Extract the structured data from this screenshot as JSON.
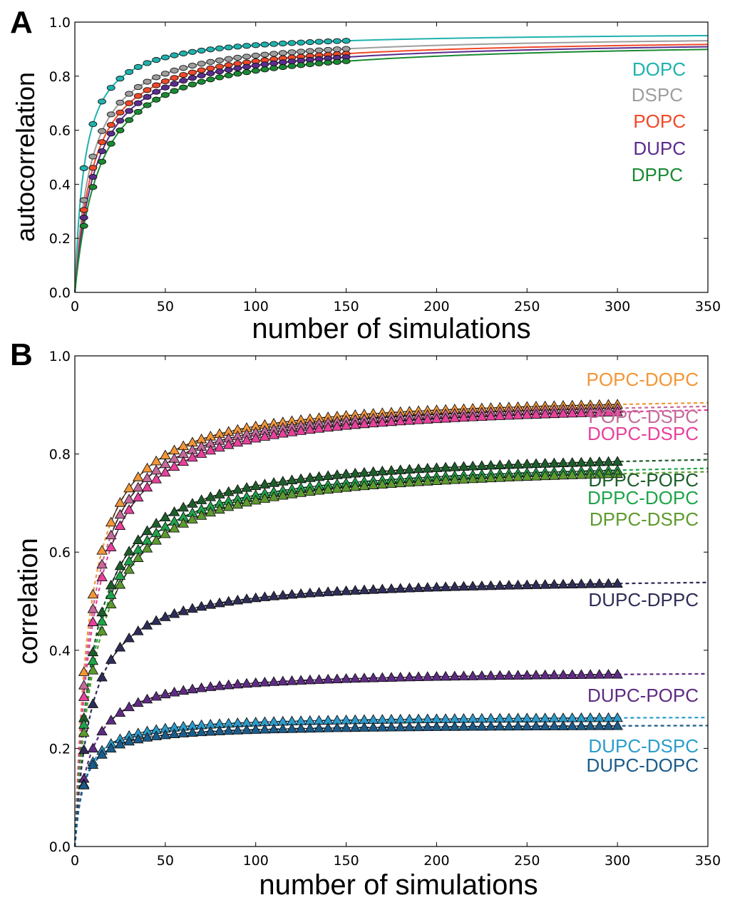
{
  "chart_data": [
    {
      "panel": "A",
      "type": "scatter",
      "title": "",
      "xlabel": "number of simulations",
      "ylabel": "autocorrelation",
      "xlim": [
        0,
        350
      ],
      "ylim": [
        0.0,
        1.0
      ],
      "xticks": [
        "0",
        "50",
        "100",
        "150",
        "200",
        "250",
        "300",
        "350"
      ],
      "yticks": [
        "0.0",
        "0.2",
        "0.4",
        "0.6",
        "0.8",
        "1.0"
      ],
      "grid": false,
      "legend_location": "right",
      "fit": "solid",
      "x": [
        5,
        10,
        15,
        20,
        25,
        30,
        35,
        40,
        45,
        50,
        55,
        60,
        65,
        70,
        75,
        80,
        85,
        90,
        95,
        100,
        105,
        110,
        115,
        120,
        125,
        130,
        135,
        140,
        145,
        150
      ],
      "series": [
        {
          "name": "DOPC",
          "color": "#1fb2ae",
          "plateau": 0.965,
          "tau": 5.5
        },
        {
          "name": "DSPC",
          "color": "#9e9e9e",
          "plateau": 0.955,
          "tau": 9.0
        },
        {
          "name": "POPC",
          "color": "#f0492a",
          "plateau": 0.945,
          "tau": 10.5
        },
        {
          "name": "DUPC",
          "color": "#5b2c8e",
          "plateau": 0.94,
          "tau": 12.0
        },
        {
          "name": "DPPC",
          "color": "#1a8a33",
          "plateau": 0.935,
          "tau": 14.0
        }
      ]
    },
    {
      "panel": "B",
      "type": "scatter",
      "title": "",
      "xlabel": "number of simulations",
      "ylabel": "correlation",
      "xlim": [
        0,
        350
      ],
      "ylim": [
        0.0,
        1.0
      ],
      "xticks": [
        "0",
        "50",
        "100",
        "150",
        "200",
        "250",
        "300",
        "350"
      ],
      "yticks": [
        "0.0",
        "0.2",
        "0.4",
        "0.6",
        "0.8",
        "1.0"
      ],
      "grid": false,
      "legend_location": "right",
      "fit": "dashed",
      "x": [
        5,
        10,
        15,
        20,
        25,
        30,
        35,
        40,
        45,
        50,
        55,
        60,
        65,
        70,
        75,
        80,
        85,
        90,
        95,
        100,
        105,
        110,
        115,
        120,
        125,
        130,
        135,
        140,
        145,
        150,
        155,
        160,
        165,
        170,
        175,
        180,
        185,
        190,
        195,
        200,
        205,
        210,
        215,
        220,
        225,
        230,
        235,
        240,
        245,
        250,
        255,
        260,
        265,
        270,
        275,
        280,
        285,
        290,
        295,
        300
      ],
      "series": [
        {
          "name": "POPC-DOPC",
          "color": "#f39638",
          "plateau": 0.925,
          "tau": 8.0
        },
        {
          "name": "POPC-DSPC",
          "color": "#c56a9b",
          "plateau": 0.92,
          "tau": 9.0
        },
        {
          "name": "DOPC-DSPC",
          "color": "#e8419b",
          "plateau": 0.915,
          "tau": 10.0
        },
        {
          "name": "DPPC-POPC",
          "color": "#1d5e2b",
          "plateau": 0.812,
          "tau": 10.5
        },
        {
          "name": "DPPC-DOPC",
          "color": "#1fa54a",
          "plateau": 0.795,
          "tau": 11.0
        },
        {
          "name": "DPPC-DSPC",
          "color": "#5e9b2e",
          "plateau": 0.79,
          "tau": 12.0
        },
        {
          "name": "DUPC-DPPC",
          "color": "#2e2d57",
          "plateau": 0.552,
          "tau": 9.0
        },
        {
          "name": "DUPC-POPC",
          "color": "#5e2b83",
          "plateau": 0.36,
          "tau": 8.0
        },
        {
          "name": "DUPC-DSPC",
          "color": "#2b9ccd",
          "plateau": 0.267,
          "tau": 5.5
        },
        {
          "name": "DUPC-DOPC",
          "color": "#1a5c8a",
          "plateau": 0.25,
          "tau": 5.0
        }
      ]
    }
  ]
}
